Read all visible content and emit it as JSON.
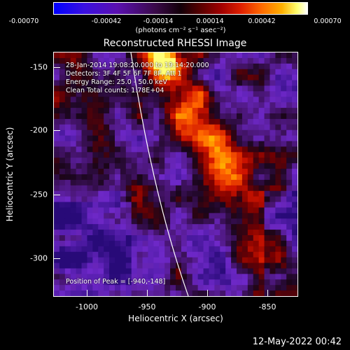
{
  "colorbar": {
    "ticks": [
      "-0.00070",
      "-0.00042",
      "-0.00014",
      "0.00014",
      "0.00042",
      "0.00070"
    ],
    "units": "(photons cm⁻² s⁻¹ asec⁻²)"
  },
  "title": "Reconstructed RHESSI Image",
  "annotations": {
    "date_range": "28-Jan-2014 19:08:20.000 to 19:14:20.000",
    "detectors": "Detectors: 3F 4F 5F 6F 7F 8F, Att 1",
    "energy": "Energy Range: 25.0 - 50.0 keV",
    "clean": "Clean    Total counts: 1.78E+04",
    "peak": "Position of Peak = [-940,-148]"
  },
  "axes": {
    "xlabel": "Heliocentric X (arcsec)",
    "ylabel": "Heliocentric Y (arcsec)",
    "xticks": [
      "-1000",
      "-950",
      "-900",
      "-850"
    ],
    "yticks": [
      "-150",
      "-200",
      "-250",
      "-300"
    ]
  },
  "timestamp": "12-May-2022 00:42"
}
